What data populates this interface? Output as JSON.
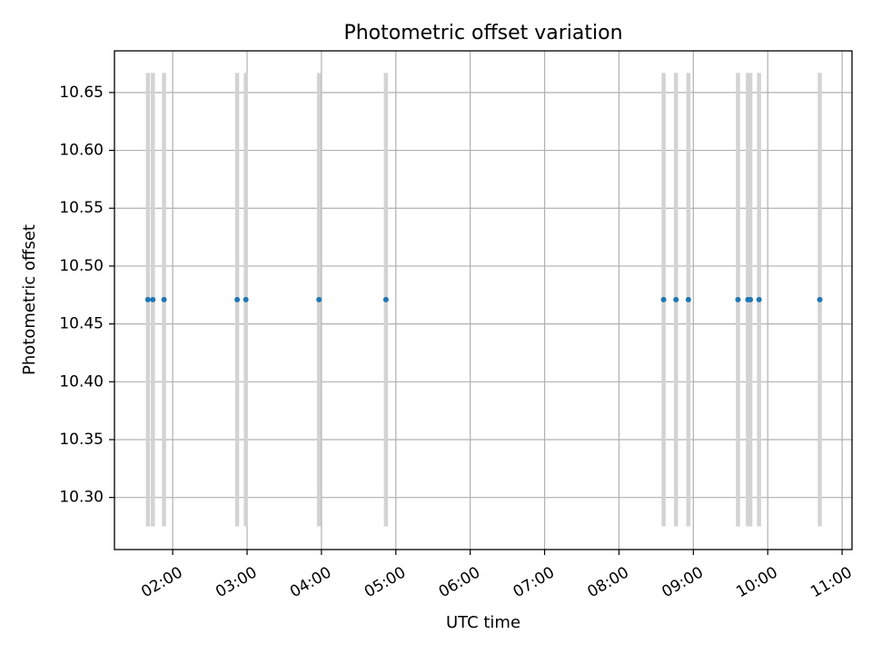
{
  "chart_data": {
    "type": "scatter",
    "title": "Photometric offset variation",
    "xlabel": "UTC time",
    "ylabel": "Photometric offset",
    "xlim": [
      "01:13",
      "11:08"
    ],
    "ylim": [
      10.255,
      10.686
    ],
    "x_ticks": [
      "02:00",
      "03:00",
      "04:00",
      "05:00",
      "06:00",
      "07:00",
      "08:00",
      "09:00",
      "10:00",
      "11:00"
    ],
    "y_ticks": [
      "10.30",
      "10.35",
      "10.40",
      "10.45",
      "10.50",
      "10.55",
      "10.60",
      "10.65"
    ],
    "grid": true,
    "error_bar_range": [
      10.275,
      10.667
    ],
    "colors": {
      "points": "#1f77b4",
      "error_bars": "#d3d3d3",
      "grid": "#b0b0b0"
    },
    "points": [
      {
        "x": "01:40",
        "y": 10.471
      },
      {
        "x": "01:44",
        "y": 10.471
      },
      {
        "x": "01:53",
        "y": 10.471
      },
      {
        "x": "02:52",
        "y": 10.471
      },
      {
        "x": "02:59",
        "y": 10.471
      },
      {
        "x": "03:58",
        "y": 10.471
      },
      {
        "x": "04:52",
        "y": 10.471
      },
      {
        "x": "08:36",
        "y": 10.471
      },
      {
        "x": "08:46",
        "y": 10.471
      },
      {
        "x": "08:56",
        "y": 10.471
      },
      {
        "x": "09:36",
        "y": 10.471
      },
      {
        "x": "09:44",
        "y": 10.471
      },
      {
        "x": "09:46",
        "y": 10.471
      },
      {
        "x": "09:53",
        "y": 10.471
      },
      {
        "x": "10:42",
        "y": 10.471
      }
    ]
  }
}
